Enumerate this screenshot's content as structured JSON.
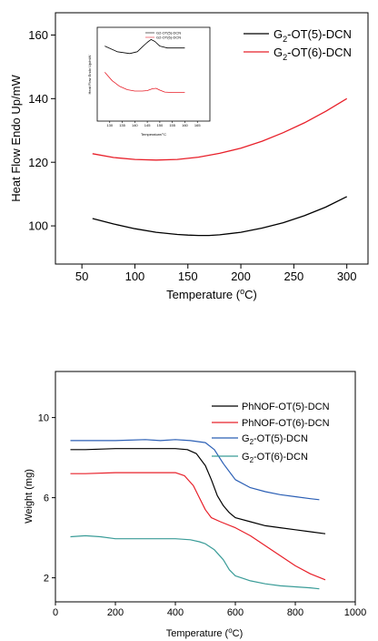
{
  "chart_data": [
    {
      "type": "line",
      "xlabel": "Temperature (°C)",
      "xlabel_parts": {
        "pre": "Temperature (",
        "sup": "o",
        "post": "C)"
      },
      "ylabel": "Heat Flow Endo Up/mW",
      "xlim": [
        25,
        320
      ],
      "ylim": [
        88,
        167
      ],
      "xticks": [
        50,
        100,
        150,
        200,
        250,
        300
      ],
      "yticks": [
        100,
        120,
        140,
        160
      ],
      "grid": false,
      "legend_position": "top-right",
      "series": [
        {
          "name": "G2-OT(5)-DCN",
          "name_parts": {
            "pre": "G",
            "sub": "2",
            "post": "-OT(5)-DCN"
          },
          "color": "#000000",
          "x": [
            60,
            80,
            100,
            120,
            140,
            150,
            160,
            170,
            180,
            200,
            220,
            240,
            260,
            280,
            300
          ],
          "y": [
            102.3,
            100.6,
            99.1,
            98.0,
            97.3,
            97.1,
            97.0,
            97.0,
            97.2,
            98.0,
            99.3,
            101.0,
            103.2,
            105.9,
            109.2
          ]
        },
        {
          "name": "G2-OT(6)-DCN",
          "name_parts": {
            "pre": "G",
            "sub": "2",
            "post": "-OT(6)-DCN"
          },
          "color": "#e8202a",
          "x": [
            60,
            80,
            100,
            120,
            140,
            160,
            180,
            200,
            220,
            240,
            260,
            280,
            300
          ],
          "y": [
            122.7,
            121.5,
            120.9,
            120.7,
            120.9,
            121.6,
            122.8,
            124.4,
            126.6,
            129.3,
            132.4,
            136.0,
            140.0
          ]
        }
      ],
      "inset": {
        "type": "line",
        "xlabel": "Temperature/°C",
        "ylabel": "Heat Flow Endo Up/mW",
        "xlim": [
          125,
          170
        ],
        "ylim": [
          0,
          10
        ],
        "xticks": [
          130,
          135,
          140,
          145,
          150,
          155,
          160,
          165
        ],
        "series": [
          {
            "name": "G2-OT(5)-DCN",
            "color": "#000000",
            "x": [
              128,
              133,
              138,
              141,
              143,
              145,
              146.5,
              148,
              150,
              153,
              156,
              160
            ],
            "y": [
              8.0,
              7.4,
              7.2,
              7.4,
              7.9,
              8.4,
              8.7,
              8.5,
              8.0,
              7.8,
              7.8,
              7.8
            ]
          },
          {
            "name": "G2-OT(6)-DCN",
            "color": "#e8202a",
            "x": [
              128,
              131,
              134,
              137,
              140,
              143,
              145,
              147,
              148.5,
              150,
              152,
              155,
              158,
              160
            ],
            "y": [
              5.2,
              4.3,
              3.7,
              3.35,
              3.2,
              3.2,
              3.25,
              3.45,
              3.5,
              3.3,
              3.1,
              3.05,
              3.05,
              3.05
            ]
          }
        ]
      }
    },
    {
      "type": "line",
      "xlabel": "Temperature (°C)",
      "xlabel_parts": {
        "pre": "Temperature (",
        "sup": "o",
        "post": "C)"
      },
      "ylabel": "Weight (mg)",
      "xlim": [
        0,
        1000
      ],
      "ylim": [
        0.8,
        12.3
      ],
      "xticks": [
        0,
        200,
        400,
        600,
        800,
        1000
      ],
      "yticks": [
        2,
        6,
        10
      ],
      "grid": false,
      "legend_position": "top-right",
      "series": [
        {
          "name": "PhNOF-OT(5)-DCN",
          "name_parts": {
            "pre": "PhNOF-OT(5)-DCN",
            "sub": "",
            "post": ""
          },
          "color": "#000000",
          "x": [
            50,
            100,
            200,
            300,
            400,
            440,
            470,
            500,
            520,
            540,
            560,
            580,
            600,
            650,
            700,
            750,
            800,
            850,
            900
          ],
          "y": [
            8.4,
            8.4,
            8.45,
            8.45,
            8.45,
            8.4,
            8.2,
            7.6,
            6.9,
            6.1,
            5.6,
            5.25,
            5.0,
            4.8,
            4.6,
            4.5,
            4.4,
            4.3,
            4.2
          ]
        },
        {
          "name": "PhNOF-OT(6)-DCN",
          "name_parts": {
            "pre": "PhNOF-OT(6)-DCN",
            "sub": "",
            "post": ""
          },
          "color": "#e8202a",
          "x": [
            50,
            100,
            200,
            300,
            400,
            430,
            460,
            480,
            500,
            520,
            550,
            600,
            650,
            700,
            750,
            800,
            850,
            900
          ],
          "y": [
            7.2,
            7.2,
            7.25,
            7.25,
            7.25,
            7.1,
            6.6,
            6.0,
            5.4,
            5.0,
            4.8,
            4.5,
            4.1,
            3.6,
            3.1,
            2.6,
            2.2,
            1.9
          ]
        },
        {
          "name": "G2-OT(5)-DCN",
          "name_parts": {
            "pre": "G",
            "sub": "2",
            "post": "-OT(5)-DCN"
          },
          "color": "#2b5fb5",
          "x": [
            50,
            100,
            200,
            300,
            350,
            400,
            450,
            500,
            530,
            560,
            600,
            650,
            700,
            750,
            800,
            850,
            880
          ],
          "y": [
            8.85,
            8.85,
            8.85,
            8.9,
            8.85,
            8.9,
            8.85,
            8.75,
            8.4,
            7.7,
            6.9,
            6.5,
            6.3,
            6.15,
            6.05,
            5.95,
            5.9
          ]
        },
        {
          "name": "G2-OT(6)-DCN",
          "name_parts": {
            "pre": "G",
            "sub": "2",
            "post": "-OT(6)-DCN"
          },
          "color": "#3a9c98",
          "x": [
            50,
            100,
            150,
            200,
            300,
            400,
            450,
            480,
            500,
            530,
            560,
            580,
            600,
            650,
            700,
            750,
            800,
            850,
            880
          ],
          "y": [
            4.05,
            4.1,
            4.05,
            3.95,
            3.95,
            3.95,
            3.9,
            3.8,
            3.7,
            3.4,
            2.9,
            2.4,
            2.1,
            1.85,
            1.7,
            1.6,
            1.55,
            1.5,
            1.45
          ]
        }
      ]
    }
  ]
}
